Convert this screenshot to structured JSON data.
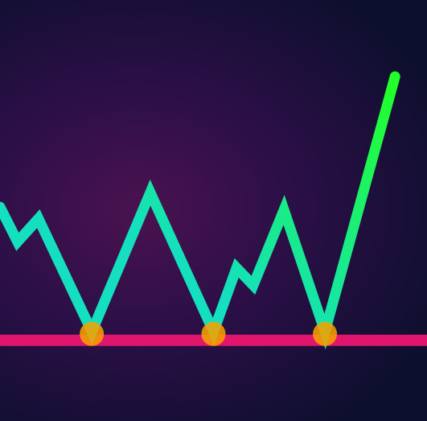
{
  "chart_data": {
    "type": "line",
    "title": "",
    "xlabel": "",
    "ylabel": "",
    "grid": false,
    "legend": "none",
    "xlim": [
      0,
      100
    ],
    "ylim": [
      0,
      100
    ],
    "series": [
      {
        "values": [
          {
            "x": 0,
            "y": 73
          },
          {
            "x": 4.1,
            "y": 61
          },
          {
            "x": 9.0,
            "y": 69
          },
          {
            "x": 21.5,
            "y": 30
          },
          {
            "x": 35.2,
            "y": 78
          },
          {
            "x": 50.0,
            "y": 30
          },
          {
            "x": 55.4,
            "y": 52
          },
          {
            "x": 59.3,
            "y": 46
          },
          {
            "x": 66.5,
            "y": 72
          },
          {
            "x": 76.1,
            "y": 30
          },
          {
            "x": 92.5,
            "y": 118
          }
        ]
      }
    ],
    "support_level": 27,
    "support_touches": [
      {
        "x": 21.5,
        "y": 27
      },
      {
        "x": 50.0,
        "y": 27
      },
      {
        "x": 76.1,
        "y": 27
      }
    ],
    "colors": {
      "line_start": "#14e0c0",
      "line_end": "#22ff2a",
      "support": "#e0166e",
      "touch": "#f5a000"
    }
  }
}
